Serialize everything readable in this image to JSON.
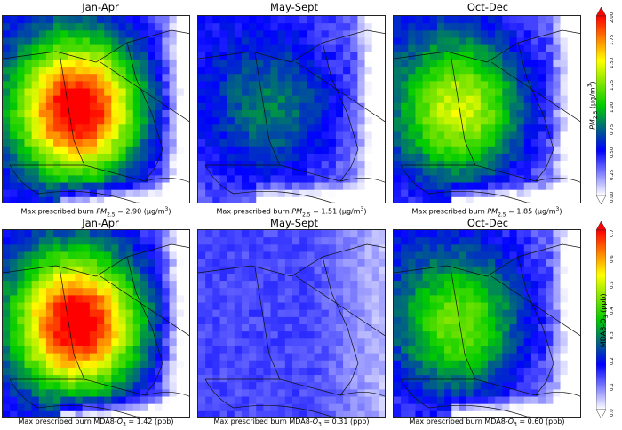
{
  "rows": [
    {
      "titles": [
        "Jan-Apr",
        "May-Sept",
        "Oct-Dec"
      ],
      "captions": [
        {
          "prefix": "Max prescribed burn ",
          "species": "PM",
          "sub": "2.5",
          "rest": " = 2.90 (μg/m",
          "sup": "3",
          "end": ")"
        },
        {
          "prefix": "Max prescribed burn ",
          "species": "PM",
          "sub": "2.5",
          "rest": " = 1.51 (μg/m",
          "sup": "3",
          "end": ")"
        },
        {
          "prefix": "Max prescribed burn ",
          "species": "PM",
          "sub": "2.5",
          "rest": " = 1.85 (μg/m",
          "sup": "3",
          "end": ")"
        }
      ],
      "colorbar": {
        "label_main": "PM",
        "label_sub": "2.5",
        "label_rest": " (μg/m",
        "label_sup": "3",
        "label_end": ")",
        "ticks": [
          "0.00",
          "0.25",
          "0.50",
          "0.75",
          "1.00",
          "1.25",
          "1.50",
          "1.75",
          "2.00"
        ],
        "range": [
          0,
          2.0
        ]
      },
      "intensity": [
        0.9,
        0.25,
        0.55
      ]
    },
    {
      "titles": [
        "Jan-Apr",
        "May-Sept",
        "Oct-Dec"
      ],
      "captions": [
        {
          "prefix": "Max prescribed burn MDA8-",
          "species": "O",
          "sub": "3",
          "rest": " = 1.42 (ppb)",
          "sup": "",
          "end": ""
        },
        {
          "prefix": "Max prescribed burn MDA8-",
          "species": "O",
          "sub": "3",
          "rest": " = 0.31 (ppb)",
          "sup": "",
          "end": ""
        },
        {
          "prefix": "Max prescribed burn MDA8-",
          "species": "O",
          "sub": "3",
          "rest": " = 0.60 (ppb)",
          "sup": "",
          "end": ""
        }
      ],
      "colorbar": {
        "label_main": "MDA8-O",
        "label_sub": "3",
        "label_rest": " (ppb)",
        "label_sup": "",
        "label_end": "",
        "ticks": [
          "0.0",
          "0.1",
          "0.2",
          "0.3",
          "0.4",
          "0.5",
          "0.6",
          "0.7"
        ],
        "range": [
          0,
          0.7
        ]
      },
      "intensity": [
        0.9,
        0.12,
        0.45
      ]
    }
  ],
  "palette": [
    "#ffffff",
    "#0000ff",
    "#00cc00",
    "#ffff00",
    "#ff0000"
  ]
}
